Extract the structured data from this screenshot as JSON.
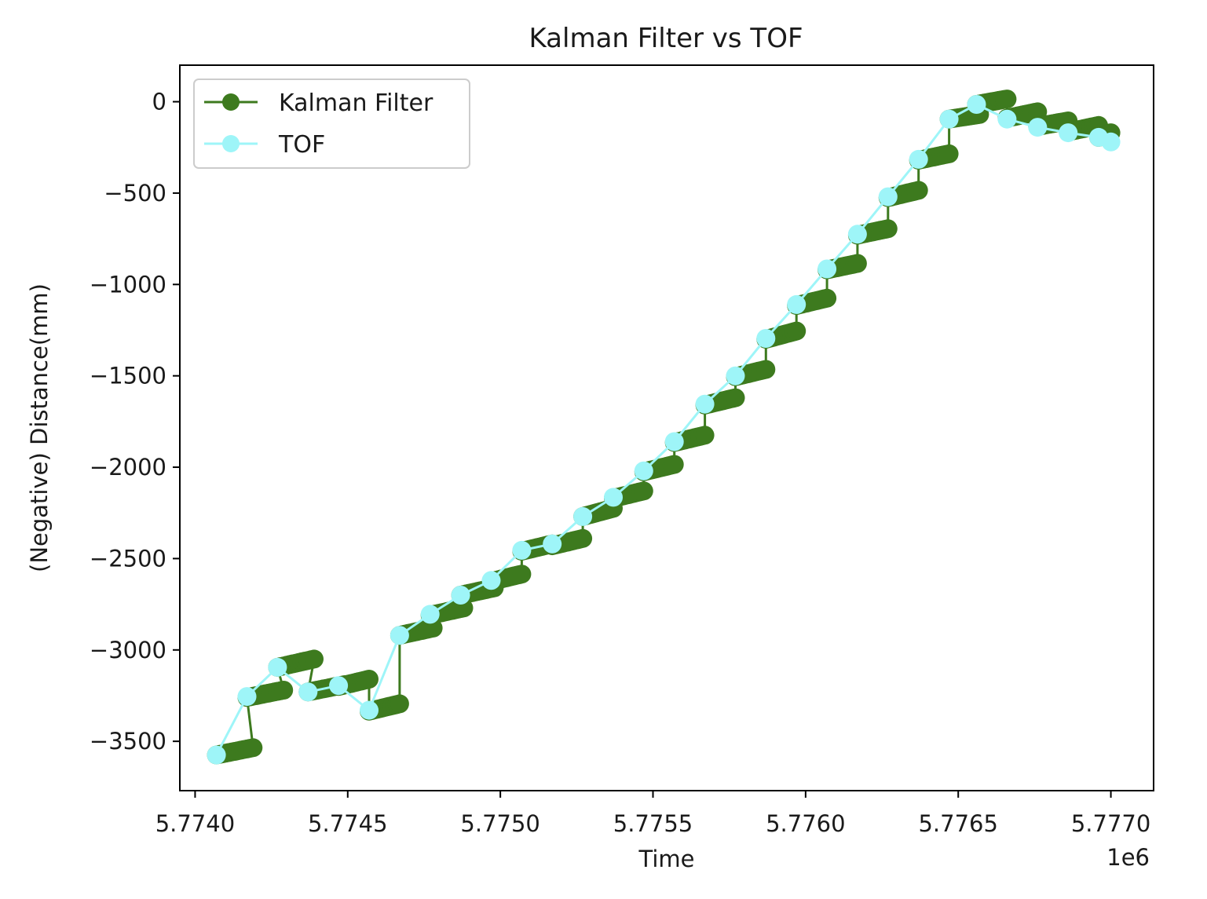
{
  "chart_data": {
    "type": "line",
    "title": "Kalman Filter vs TOF",
    "xlabel": "Time",
    "ylabel": "(Negative) Distance(mm)",
    "x_offset_label": "1e6",
    "xlim": [
      5773950,
      5777140
    ],
    "ylim": [
      -3770,
      200
    ],
    "x_ticks": [
      5774000,
      5774500,
      5775000,
      5775500,
      5776000,
      5776500,
      5777000
    ],
    "x_tick_labels": [
      "5.7740",
      "5.7745",
      "5.7750",
      "5.7755",
      "5.7760",
      "5.7765",
      "5.7770"
    ],
    "y_ticks": [
      0,
      -500,
      -1000,
      -1500,
      -2000,
      -2500,
      -3000,
      -3500
    ],
    "y_tick_labels": [
      "0",
      "−500",
      "−1000",
      "−1500",
      "−2000",
      "−2500",
      "−3000",
      "−3500"
    ],
    "grid": false,
    "legend": {
      "position": "top-left"
    },
    "series": [
      {
        "name": "Kalman Filter",
        "color": "#3d7a1e",
        "marker": "circle",
        "steps": [
          {
            "x0": 5774070,
            "x1": 5774190,
            "y0": -3575,
            "y1": -3535
          },
          {
            "x0": 5774170,
            "x1": 5774290,
            "y0": -3260,
            "y1": -3220
          },
          {
            "x0": 5774270,
            "x1": 5774390,
            "y0": -3095,
            "y1": -3050
          },
          {
            "x0": 5774370,
            "x1": 5774490,
            "y0": -3230,
            "y1": -3190
          },
          {
            "x0": 5774470,
            "x1": 5774570,
            "y0": -3200,
            "y1": -3160
          },
          {
            "x0": 5774570,
            "x1": 5774670,
            "y0": -3335,
            "y1": -3295
          },
          {
            "x0": 5774670,
            "x1": 5774780,
            "y0": -2920,
            "y1": -2880
          },
          {
            "x0": 5774770,
            "x1": 5774880,
            "y0": -2810,
            "y1": -2770
          },
          {
            "x0": 5774870,
            "x1": 5774980,
            "y0": -2700,
            "y1": -2660
          },
          {
            "x0": 5774970,
            "x1": 5775070,
            "y0": -2625,
            "y1": -2585
          },
          {
            "x0": 5775070,
            "x1": 5775170,
            "y0": -2460,
            "y1": -2420
          },
          {
            "x0": 5775170,
            "x1": 5775270,
            "y0": -2430,
            "y1": -2390
          },
          {
            "x0": 5775270,
            "x1": 5775370,
            "y0": -2270,
            "y1": -2225
          },
          {
            "x0": 5775370,
            "x1": 5775470,
            "y0": -2170,
            "y1": -2130
          },
          {
            "x0": 5775470,
            "x1": 5775570,
            "y0": -2025,
            "y1": -1985
          },
          {
            "x0": 5775570,
            "x1": 5775670,
            "y0": -1865,
            "y1": -1825
          },
          {
            "x0": 5775670,
            "x1": 5775770,
            "y0": -1660,
            "y1": -1620
          },
          {
            "x0": 5775770,
            "x1": 5775870,
            "y0": -1505,
            "y1": -1465
          },
          {
            "x0": 5775870,
            "x1": 5775970,
            "y0": -1300,
            "y1": -1255
          },
          {
            "x0": 5775970,
            "x1": 5776070,
            "y0": -1115,
            "y1": -1075
          },
          {
            "x0": 5776070,
            "x1": 5776170,
            "y0": -920,
            "y1": -885
          },
          {
            "x0": 5776170,
            "x1": 5776270,
            "y0": -730,
            "y1": -695
          },
          {
            "x0": 5776270,
            "x1": 5776370,
            "y0": -525,
            "y1": -485
          },
          {
            "x0": 5776370,
            "x1": 5776470,
            "y0": -320,
            "y1": -285
          },
          {
            "x0": 5776470,
            "x1": 5776570,
            "y0": -95,
            "y1": -70
          },
          {
            "x0": 5776560,
            "x1": 5776660,
            "y0": -15,
            "y1": 15
          },
          {
            "x0": 5776660,
            "x1": 5776760,
            "y0": -90,
            "y1": -55
          },
          {
            "x0": 5776760,
            "x1": 5776860,
            "y0": -135,
            "y1": -105
          },
          {
            "x0": 5776860,
            "x1": 5776960,
            "y0": -165,
            "y1": -130
          },
          {
            "x0": 5776960,
            "x1": 5777000,
            "y0": -195,
            "y1": -170
          }
        ]
      },
      {
        "name": "TOF",
        "color": "#9ef5f8",
        "marker": "circle",
        "points": [
          [
            5774070,
            -3575
          ],
          [
            5774170,
            -3255
          ],
          [
            5774270,
            -3095
          ],
          [
            5774370,
            -3230
          ],
          [
            5774470,
            -3195
          ],
          [
            5774570,
            -3330
          ],
          [
            5774670,
            -2920
          ],
          [
            5774770,
            -2805
          ],
          [
            5774870,
            -2700
          ],
          [
            5774970,
            -2620
          ],
          [
            5775070,
            -2455
          ],
          [
            5775170,
            -2420
          ],
          [
            5775270,
            -2270
          ],
          [
            5775370,
            -2165
          ],
          [
            5775470,
            -2020
          ],
          [
            5775570,
            -1860
          ],
          [
            5775670,
            -1655
          ],
          [
            5775770,
            -1500
          ],
          [
            5775870,
            -1295
          ],
          [
            5775970,
            -1110
          ],
          [
            5776070,
            -915
          ],
          [
            5776170,
            -725
          ],
          [
            5776270,
            -520
          ],
          [
            5776370,
            -315
          ],
          [
            5776470,
            -95
          ],
          [
            5776560,
            -15
          ],
          [
            5776660,
            -95
          ],
          [
            5776760,
            -140
          ],
          [
            5776860,
            -170
          ],
          [
            5776960,
            -195
          ],
          [
            5777000,
            -220
          ]
        ]
      }
    ]
  }
}
